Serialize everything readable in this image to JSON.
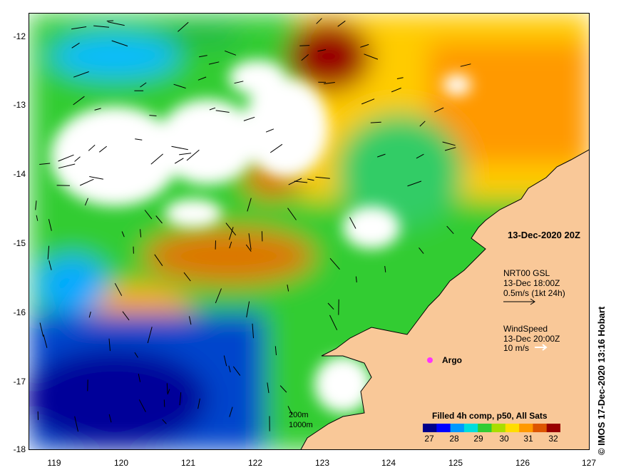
{
  "map": {
    "y_ticks": [
      "-12",
      "-13",
      "-14",
      "-15",
      "-16",
      "-17",
      "-18"
    ],
    "x_ticks": [
      "119",
      "120",
      "121",
      "122",
      "123",
      "124",
      "125",
      "126",
      "127"
    ],
    "lon_range": [
      118.6,
      127
    ],
    "lat_range": [
      -18,
      -11.75
    ]
  },
  "date_label": "13-Dec-2020 20Z",
  "current_legend": {
    "line1": "NRT00 GSL",
    "line2": "13-Dec 18:00Z",
    "line3": "0.5m/s (1kt 24h)"
  },
  "wind_legend": {
    "line1": "WindSpeed",
    "line2": "13-Dec 20:00Z",
    "line3": "10 m/s"
  },
  "argo": {
    "label": "Argo",
    "color": "#ff33ff"
  },
  "depth_legend": {
    "d1": "200m",
    "d2": "1000m"
  },
  "colorbar": {
    "title": "Filled 4h comp, p50, All Sats",
    "ticks": [
      "27",
      "28",
      "29",
      "30",
      "31",
      "32"
    ],
    "colors": [
      "#00008b",
      "#0000ff",
      "#0099ff",
      "#00dddd",
      "#33cc33",
      "#aadd00",
      "#ffdd00",
      "#ff9900",
      "#dd5500",
      "#990000"
    ]
  },
  "credit": "© IMOS 17-Dec-2020 13:16 Hobart",
  "colors": {
    "land": "#f9c898",
    "coast": "#000000",
    "missing": "#ffffff"
  }
}
